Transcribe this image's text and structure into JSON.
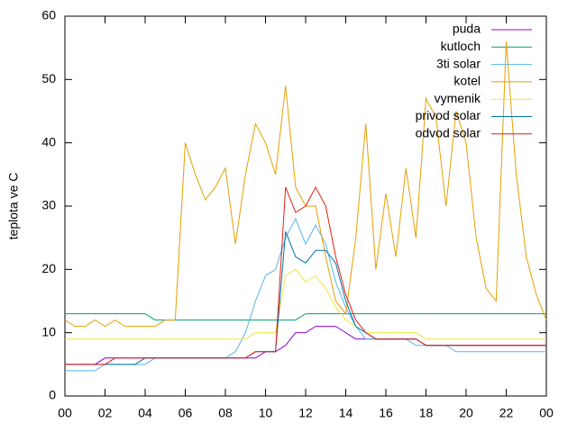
{
  "chart_data": {
    "type": "line",
    "ylabel": "teplota ve C",
    "x": [
      0,
      0.5,
      1,
      1.5,
      2,
      2.5,
      3,
      3.5,
      4,
      4.5,
      5,
      5.5,
      6,
      6.5,
      7,
      7.5,
      8,
      8.5,
      9,
      9.5,
      10,
      10.5,
      11,
      11.5,
      12,
      12.5,
      13,
      13.5,
      14,
      14.5,
      15,
      15.5,
      16,
      16.5,
      17,
      17.5,
      18,
      18.5,
      19,
      19.5,
      20,
      20.5,
      21,
      21.5,
      22,
      22.5,
      23,
      23.5,
      24
    ],
    "xlim": [
      0,
      24
    ],
    "xticks": [
      {
        "value": 0,
        "label": "00"
      },
      {
        "value": 2,
        "label": "02"
      },
      {
        "value": 4,
        "label": "04"
      },
      {
        "value": 6,
        "label": "06"
      },
      {
        "value": 8,
        "label": "08"
      },
      10,
      12,
      14,
      16,
      18,
      20,
      22,
      {
        "value": 24,
        "label": "00"
      }
    ],
    "ylim": [
      0,
      60
    ],
    "yticks": [
      0,
      10,
      20,
      30,
      40,
      50,
      60
    ],
    "legend": "top-right",
    "series": [
      {
        "name": "puda",
        "color": "#9400d3",
        "values": [
          5,
          5,
          5,
          5,
          6,
          6,
          6,
          6,
          6,
          6,
          6,
          6,
          6,
          6,
          6,
          6,
          6,
          6,
          6,
          6,
          7,
          7,
          8,
          10,
          10,
          11,
          11,
          11,
          10,
          9,
          9,
          9,
          9,
          9,
          9,
          9,
          8,
          8,
          8,
          8,
          8,
          8,
          8,
          8,
          8,
          8,
          8,
          8,
          8
        ]
      },
      {
        "name": "kutloch",
        "color": "#009e73",
        "values": [
          13,
          13,
          13,
          13,
          13,
          13,
          13,
          13,
          13,
          12,
          12,
          12,
          12,
          12,
          12,
          12,
          12,
          12,
          12,
          12,
          12,
          12,
          12,
          12,
          13,
          13,
          13,
          13,
          13,
          13,
          13,
          13,
          13,
          13,
          13,
          13,
          13,
          13,
          13,
          13,
          13,
          13,
          13,
          13,
          13,
          13,
          13,
          13,
          13
        ]
      },
      {
        "name": "3ti solar",
        "color": "#56b4e9",
        "values": [
          4,
          4,
          4,
          4,
          5,
          5,
          5,
          5,
          5,
          6,
          6,
          6,
          6,
          6,
          6,
          6,
          6,
          7,
          10,
          15,
          19,
          20,
          25,
          28,
          24,
          27,
          24,
          18,
          14,
          11,
          9,
          9,
          9,
          9,
          9,
          8,
          8,
          8,
          8,
          7,
          7,
          7,
          7,
          7,
          7,
          7,
          7,
          7,
          7
        ]
      },
      {
        "name": "kotel",
        "color": "#e69f00",
        "values": [
          12,
          11,
          11,
          12,
          11,
          12,
          11,
          11,
          11,
          11,
          12,
          12,
          40,
          35,
          31,
          33,
          36,
          24,
          35,
          43,
          40,
          35,
          49,
          33,
          30,
          30,
          22,
          15,
          13,
          25,
          43,
          20,
          32,
          22,
          36,
          25,
          47,
          44,
          30,
          45,
          40,
          25,
          17,
          15,
          56,
          35,
          22,
          16,
          12
        ]
      },
      {
        "name": "vymenik",
        "color": "#f0e442",
        "values": [
          9,
          9,
          9,
          9,
          9,
          9,
          9,
          9,
          9,
          9,
          9,
          9,
          9,
          9,
          9,
          9,
          9,
          9,
          9,
          10,
          10,
          10,
          19,
          20,
          18,
          19,
          17,
          14,
          12,
          11,
          10,
          10,
          10,
          10,
          10,
          10,
          9,
          9,
          9,
          9,
          9,
          9,
          9,
          9,
          9,
          9,
          9,
          9,
          9
        ]
      },
      {
        "name": "privod solar",
        "color": "#0072b2",
        "values": [
          5,
          5,
          5,
          5,
          5,
          5,
          5,
          5,
          6,
          6,
          6,
          6,
          6,
          6,
          6,
          6,
          6,
          6,
          6,
          7,
          7,
          7,
          26,
          22,
          21,
          23,
          23,
          21,
          15,
          11,
          10,
          9,
          9,
          9,
          9,
          9,
          8,
          8,
          8,
          8,
          8,
          8,
          8,
          8,
          8,
          8,
          8,
          8,
          8
        ]
      },
      {
        "name": "odvod solar",
        "color": "#e51e10",
        "values": [
          5,
          5,
          5,
          5,
          5,
          6,
          6,
          6,
          6,
          6,
          6,
          6,
          6,
          6,
          6,
          6,
          6,
          6,
          6,
          7,
          7,
          7,
          33,
          29,
          30,
          33,
          30,
          22,
          16,
          12,
          10,
          9,
          9,
          9,
          9,
          9,
          8,
          8,
          8,
          8,
          8,
          8,
          8,
          8,
          8,
          8,
          8,
          8,
          8
        ]
      }
    ]
  }
}
